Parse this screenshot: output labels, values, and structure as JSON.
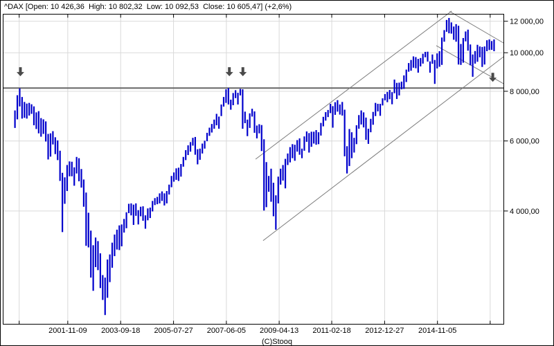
{
  "chart_data": {
    "type": "bar",
    "subtype": "high-low price bars, weekly chart approximated at monthly resolution",
    "symbol": "^DAX",
    "title": "^DAX [Open: 10 426,36  High: 10 802,32  Low: 10 092,53  Close: 10 605,47] (+2,6%)",
    "copyright": "(C)Stooq",
    "scale": "logarithmic",
    "ylim": [
      2100,
      12800
    ],
    "yticks": [
      {
        "value": 12000,
        "label": "12 000,00"
      },
      {
        "value": 10000,
        "label": "10 000,00"
      },
      {
        "value": 8000,
        "label": "8 000,00"
      },
      {
        "value": 6000,
        "label": "6 000,00"
      },
      {
        "value": 4000,
        "label": "4 000,00"
      }
    ],
    "xticks": [
      "2001-11-09",
      "2003-09-18",
      "2005-07-27",
      "2007-06-05",
      "2009-04-13",
      "2011-02-18",
      "2012-12-27",
      "2014-11-05"
    ],
    "xticks_unlabeled": [
      "2000-02-25",
      "2016-09-12"
    ],
    "start_month": "2000-01",
    "months_high_low": [
      [
        7160,
        6470
      ],
      [
        7820,
        6800
      ],
      [
        8140,
        7330
      ],
      [
        7740,
        6830
      ],
      [
        7520,
        6860
      ],
      [
        7450,
        6830
      ],
      [
        7480,
        6950
      ],
      [
        7420,
        7020
      ],
      [
        7330,
        6570
      ],
      [
        7080,
        6430
      ],
      [
        7130,
        6270
      ],
      [
        6850,
        6150
      ],
      [
        6800,
        6250
      ],
      [
        6720,
        5980
      ],
      [
        6250,
        5390
      ],
      [
        6270,
        5480
      ],
      [
        6350,
        5880
      ],
      [
        6130,
        5560
      ],
      [
        6020,
        5370
      ],
      [
        5670,
        4760
      ],
      [
        4990,
        3540
      ],
      [
        4860,
        4170
      ],
      [
        5220,
        4490
      ],
      [
        5330,
        4890
      ],
      [
        5320,
        4890
      ],
      [
        5150,
        4630
      ],
      [
        5470,
        4970
      ],
      [
        5430,
        4750
      ],
      [
        5100,
        4580
      ],
      [
        4800,
        4100
      ],
      [
        4450,
        3270
      ],
      [
        3960,
        3240
      ],
      [
        3570,
        2720
      ],
      [
        3280,
        2520
      ],
      [
        3430,
        2890
      ],
      [
        3360,
        2840
      ],
      [
        3130,
        2560
      ],
      [
        2760,
        2390
      ],
      [
        2720,
        2190
      ],
      [
        3020,
        2420
      ],
      [
        3110,
        2650
      ],
      [
        3330,
        2880
      ],
      [
        3490,
        3080
      ],
      [
        3590,
        3200
      ],
      [
        3680,
        3190
      ],
      [
        3700,
        3260
      ],
      [
        3820,
        3530
      ],
      [
        3970,
        3620
      ],
      [
        4170,
        3950
      ],
      [
        4180,
        3900
      ],
      [
        4150,
        3690
      ],
      [
        4180,
        3890
      ],
      [
        4020,
        3700
      ],
      [
        4100,
        3880
      ],
      [
        4110,
        3780
      ],
      [
        3900,
        3610
      ],
      [
        4060,
        3790
      ],
      [
        4080,
        3840
      ],
      [
        4240,
        3990
      ],
      [
        4310,
        4140
      ],
      [
        4340,
        4160
      ],
      [
        4430,
        4180
      ],
      [
        4480,
        4240
      ],
      [
        4430,
        4130
      ],
      [
        4490,
        4180
      ],
      [
        4660,
        4400
      ],
      [
        4900,
        4590
      ],
      [
        5000,
        4740
      ],
      [
        5120,
        4790
      ],
      [
        5140,
        4760
      ],
      [
        5250,
        4880
      ],
      [
        5470,
        5170
      ],
      [
        5690,
        5370
      ],
      [
        5850,
        5530
      ],
      [
        5960,
        5640
      ],
      [
        6110,
        5840
      ],
      [
        6140,
        5540
      ],
      [
        5720,
        5240
      ],
      [
        5740,
        5380
      ],
      [
        5910,
        5580
      ],
      [
        6010,
        5740
      ],
      [
        6290,
        5990
      ],
      [
        6480,
        6180
      ],
      [
        6620,
        6300
      ],
      [
        6790,
        6440
      ],
      [
        7020,
        6570
      ],
      [
        6910,
        6440
      ],
      [
        7410,
        6930
      ],
      [
        7740,
        7320
      ],
      [
        8090,
        7480
      ],
      [
        8150,
        7410
      ],
      [
        7620,
        7190
      ],
      [
        7920,
        7380
      ],
      [
        8050,
        7690
      ],
      [
        7930,
        7410
      ],
      [
        8110,
        7810
      ],
      [
        8090,
        6440
      ],
      [
        7110,
        6650
      ],
      [
        6790,
        6170
      ],
      [
        7040,
        6470
      ],
      [
        7230,
        6910
      ],
      [
        7120,
        6290
      ],
      [
        6560,
        6090
      ],
      [
        6610,
        6270
      ],
      [
        6580,
        5660
      ],
      [
        6060,
        4010
      ],
      [
        5310,
        4090
      ],
      [
        4900,
        4470
      ],
      [
        5110,
        4220
      ],
      [
        4710,
        3880
      ],
      [
        4380,
        3590
      ],
      [
        4880,
        4180
      ],
      [
        5110,
        4660
      ],
      [
        5220,
        4770
      ],
      [
        5410,
        4560
      ],
      [
        5580,
        5220
      ],
      [
        5790,
        5300
      ],
      [
        5890,
        5430
      ],
      [
        5870,
        5350
      ],
      [
        6030,
        5640
      ],
      [
        6090,
        5540
      ],
      [
        5740,
        5430
      ],
      [
        6160,
        5670
      ],
      [
        6340,
        5970
      ],
      [
        6280,
        5610
      ],
      [
        6330,
        5800
      ],
      [
        6330,
        5910
      ],
      [
        6390,
        5870
      ],
      [
        6310,
        5890
      ],
      [
        6660,
        6190
      ],
      [
        6900,
        6530
      ],
      [
        7090,
        6750
      ],
      [
        7180,
        6890
      ],
      [
        7440,
        7050
      ],
      [
        7340,
        6480
      ],
      [
        7510,
        6980
      ],
      [
        7600,
        7110
      ],
      [
        7410,
        6990
      ],
      [
        7520,
        6950
      ],
      [
        7190,
        5490
      ],
      [
        5820,
        4970
      ],
      [
        6430,
        5190
      ],
      [
        6310,
        5430
      ],
      [
        6110,
        5610
      ],
      [
        6570,
        5890
      ],
      [
        6970,
        6440
      ],
      [
        7160,
        6600
      ],
      [
        7080,
        6490
      ],
      [
        6870,
        6040
      ],
      [
        6440,
        5900
      ],
      [
        6820,
        6310
      ],
      [
        7100,
        6590
      ],
      [
        7480,
        6930
      ],
      [
        7440,
        7120
      ],
      [
        7440,
        6940
      ],
      [
        7680,
        7370
      ],
      [
        7870,
        7590
      ],
      [
        7970,
        7510
      ],
      [
        8060,
        7640
      ],
      [
        7960,
        7420
      ],
      [
        8560,
        7910
      ],
      [
        8400,
        7650
      ],
      [
        8410,
        7810
      ],
      [
        8460,
        8090
      ],
      [
        8770,
        8110
      ],
      [
        9070,
        8440
      ],
      [
        9420,
        8960
      ],
      [
        9590,
        9010
      ],
      [
        9790,
        9170
      ],
      [
        9750,
        9140
      ],
      [
        9650,
        8910
      ],
      [
        9700,
        9240
      ],
      [
        9940,
        9390
      ],
      [
        10050,
        9740
      ],
      [
        10060,
        9500
      ],
      [
        9510,
        8910
      ],
      [
        9900,
        9380
      ],
      [
        9590,
        8350
      ],
      [
        9960,
        9130
      ],
      [
        10090,
        9220
      ],
      [
        10920,
        9320
      ],
      [
        11400,
        10660
      ],
      [
        12090,
        11290
      ],
      [
        12230,
        11190
      ],
      [
        11920,
        11170
      ],
      [
        11640,
        10780
      ],
      [
        11800,
        10660
      ],
      [
        11690,
        9340
      ],
      [
        10520,
        9320
      ],
      [
        10890,
        9440
      ],
      [
        11310,
        10680
      ],
      [
        11430,
        10120
      ],
      [
        10490,
        9300
      ],
      [
        9900,
        8700
      ],
      [
        10100,
        9390
      ],
      [
        10470,
        9490
      ],
      [
        10370,
        9740
      ],
      [
        10340,
        9210
      ],
      [
        10370,
        9340
      ],
      [
        10750,
        10090
      ],
      [
        10800,
        10160
      ],
      [
        10700,
        10170
      ],
      [
        10800,
        10090
      ]
    ],
    "resistance_level": 8150,
    "trendlines": [
      {
        "name": "rising-channel-upper",
        "from": {
          "date": "2008-06-15",
          "value": 5400
        },
        "to": {
          "date": "2015-05-05",
          "value": 12730
        }
      },
      {
        "name": "rising-channel-lower",
        "from": {
          "date": "2008-09-20",
          "value": 3370
        },
        "to": {
          "date": "2017-03-01",
          "value": 9770
        }
      },
      {
        "name": "falling-channel-upper",
        "from": {
          "date": "2015-04-10",
          "value": 12700
        },
        "to": {
          "date": "2017-03-01",
          "value": 10580
        }
      },
      {
        "name": "falling-channel-lower",
        "from": {
          "date": "2014-10-20",
          "value": 10420
        },
        "to": {
          "date": "2017-03-01",
          "value": 8360
        }
      }
    ],
    "arrows": [
      {
        "date": "2000-03-10",
        "value": 8730
      },
      {
        "date": "2007-07-13",
        "value": 8730
      },
      {
        "date": "2008-01-04",
        "value": 8730
      },
      {
        "date": "2016-10-15",
        "value": 8450
      }
    ],
    "colors": {
      "bar": "#0000cc",
      "grid": "#d9d9d9",
      "frame": "#000000",
      "trendline": "#7d7d7d",
      "resistance": "#666666",
      "arrow": "#4a4a4a",
      "background": "#ffffff",
      "text": "#000000"
    }
  }
}
